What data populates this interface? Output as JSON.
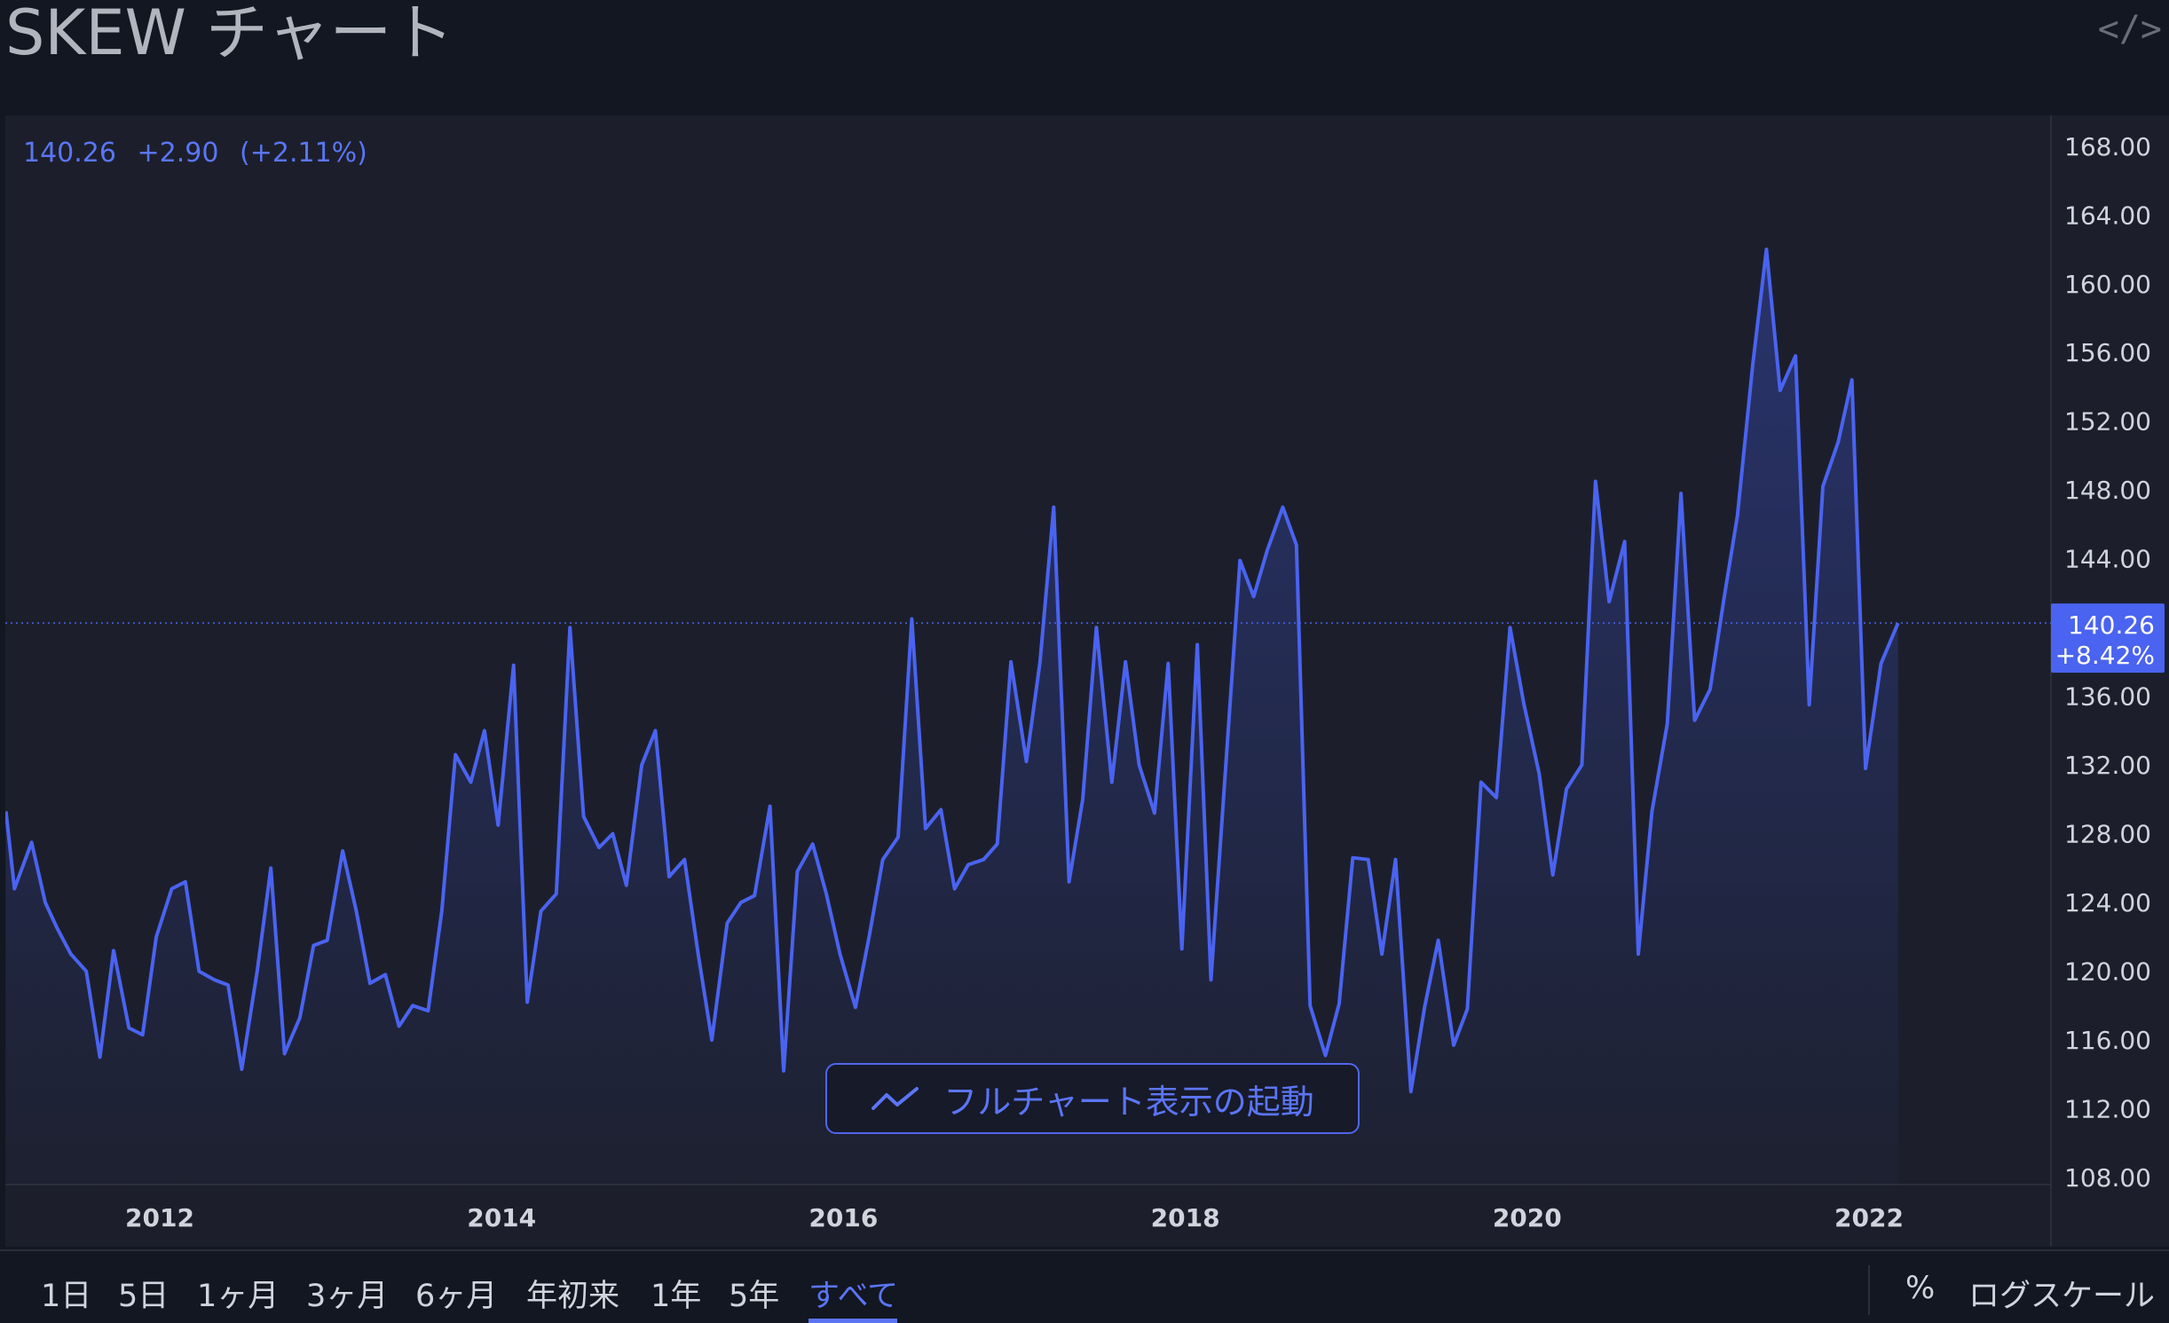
{
  "header": {
    "title": "SKEW チャート",
    "embed_icon": "code-embed-icon"
  },
  "price_info": {
    "last": "140.26",
    "change": "+2.90",
    "change_pct": "(+2.11%)"
  },
  "last_badge": {
    "price": "140.26",
    "pct": "+8.42%"
  },
  "cta": {
    "label": "フルチャート表示の起動",
    "icon": "line-chart-icon"
  },
  "range_buttons": [
    "1日",
    "5日",
    "1ヶ月",
    "3ヶ月",
    "6ヶ月",
    "年初来",
    "1年",
    "5年",
    "すべて"
  ],
  "active_range": "すべて",
  "toolbar": {
    "percent_label": "%",
    "log_label": "ログスケール"
  },
  "colors": {
    "line": "#4a63f0",
    "accent": "#5b75f5",
    "panel_bg": "#1c1f2b",
    "page_bg": "#131722"
  },
  "chart_data": {
    "type": "area",
    "title": "SKEW チャート",
    "xlabel": "",
    "ylabel": "",
    "ylim": [
      108,
      170
    ],
    "yticks": [
      "108.00",
      "112.00",
      "116.00",
      "120.00",
      "124.00",
      "128.00",
      "132.00",
      "136.00",
      "140.00",
      "144.00",
      "148.00",
      "152.00",
      "156.00",
      "160.00",
      "164.00",
      "168.00"
    ],
    "xticks": [
      {
        "year": 2012,
        "label": "2012"
      },
      {
        "year": 2014,
        "label": "2014"
      },
      {
        "year": 2016,
        "label": "2016"
      },
      {
        "year": 2018,
        "label": "2018"
      },
      {
        "year": 2020,
        "label": "2020"
      },
      {
        "year": 2022,
        "label": "2022"
      }
    ],
    "x_range": [
      2011.1,
      2023.08
    ],
    "last_value": 140.26,
    "series": [
      {
        "values": [
          [
            2011.1,
            129.3
          ],
          [
            2011.15,
            124.8
          ],
          [
            2011.25,
            127.5
          ],
          [
            2011.33,
            124.0
          ],
          [
            2011.4,
            122.5
          ],
          [
            2011.48,
            121.0
          ],
          [
            2011.57,
            120.0
          ],
          [
            2011.65,
            115.0
          ],
          [
            2011.73,
            121.2
          ],
          [
            2011.82,
            116.7
          ],
          [
            2011.9,
            116.3
          ],
          [
            2011.98,
            122.0
          ],
          [
            2012.07,
            124.8
          ],
          [
            2012.15,
            125.2
          ],
          [
            2012.23,
            120.0
          ],
          [
            2012.32,
            119.5
          ],
          [
            2012.4,
            119.2
          ],
          [
            2012.48,
            114.3
          ],
          [
            2012.57,
            120.0
          ],
          [
            2012.65,
            126.0
          ],
          [
            2012.73,
            115.2
          ],
          [
            2012.82,
            117.3
          ],
          [
            2012.9,
            121.5
          ],
          [
            2012.98,
            121.8
          ],
          [
            2013.07,
            127.0
          ],
          [
            2013.15,
            123.5
          ],
          [
            2013.23,
            119.3
          ],
          [
            2013.32,
            119.8
          ],
          [
            2013.4,
            116.8
          ],
          [
            2013.48,
            118.0
          ],
          [
            2013.57,
            117.7
          ],
          [
            2013.65,
            123.5
          ],
          [
            2013.73,
            132.6
          ],
          [
            2013.82,
            131.0
          ],
          [
            2013.9,
            134.0
          ],
          [
            2013.98,
            128.5
          ],
          [
            2014.07,
            137.8
          ],
          [
            2014.15,
            118.2
          ],
          [
            2014.23,
            123.5
          ],
          [
            2014.32,
            124.5
          ],
          [
            2014.4,
            140.0
          ],
          [
            2014.48,
            129.0
          ],
          [
            2014.57,
            127.2
          ],
          [
            2014.65,
            128.0
          ],
          [
            2014.73,
            125.0
          ],
          [
            2014.82,
            132.0
          ],
          [
            2014.9,
            134.0
          ],
          [
            2014.98,
            125.5
          ],
          [
            2015.07,
            126.5
          ],
          [
            2015.15,
            121.0
          ],
          [
            2015.23,
            116.0
          ],
          [
            2015.32,
            122.8
          ],
          [
            2015.4,
            124.0
          ],
          [
            2015.48,
            124.4
          ],
          [
            2015.57,
            129.6
          ],
          [
            2015.65,
            114.2
          ],
          [
            2015.73,
            125.8
          ],
          [
            2015.82,
            127.4
          ],
          [
            2015.9,
            124.5
          ],
          [
            2015.98,
            121.0
          ],
          [
            2016.07,
            117.9
          ],
          [
            2016.15,
            122.0
          ],
          [
            2016.23,
            126.5
          ],
          [
            2016.32,
            127.8
          ],
          [
            2016.4,
            140.5
          ],
          [
            2016.48,
            128.3
          ],
          [
            2016.57,
            129.4
          ],
          [
            2016.65,
            124.8
          ],
          [
            2016.73,
            126.2
          ],
          [
            2016.82,
            126.5
          ],
          [
            2016.9,
            127.4
          ],
          [
            2016.98,
            138.0
          ],
          [
            2017.07,
            132.2
          ],
          [
            2017.15,
            138.0
          ],
          [
            2017.23,
            147.0
          ],
          [
            2017.32,
            125.2
          ],
          [
            2017.4,
            130.0
          ],
          [
            2017.48,
            140.0
          ],
          [
            2017.57,
            131.0
          ],
          [
            2017.65,
            138.0
          ],
          [
            2017.73,
            132.0
          ],
          [
            2017.82,
            129.2
          ],
          [
            2017.9,
            137.9
          ],
          [
            2017.98,
            121.3
          ],
          [
            2018.07,
            139.0
          ],
          [
            2018.15,
            119.5
          ],
          [
            2018.23,
            131.0
          ],
          [
            2018.32,
            143.9
          ],
          [
            2018.4,
            141.8
          ],
          [
            2018.48,
            144.5
          ],
          [
            2018.57,
            147.0
          ],
          [
            2018.65,
            144.8
          ],
          [
            2018.73,
            118.0
          ],
          [
            2018.82,
            115.1
          ],
          [
            2018.9,
            118.1
          ],
          [
            2018.98,
            126.6
          ],
          [
            2019.07,
            126.5
          ],
          [
            2019.15,
            121.0
          ],
          [
            2019.23,
            126.5
          ],
          [
            2019.32,
            113.0
          ],
          [
            2019.4,
            117.9
          ],
          [
            2019.48,
            121.8
          ],
          [
            2019.57,
            115.7
          ],
          [
            2019.65,
            117.8
          ],
          [
            2019.73,
            131.0
          ],
          [
            2019.82,
            130.1
          ],
          [
            2019.9,
            140.0
          ],
          [
            2019.98,
            135.6
          ],
          [
            2020.07,
            131.5
          ],
          [
            2020.15,
            125.6
          ],
          [
            2020.23,
            130.6
          ],
          [
            2020.32,
            132.0
          ],
          [
            2020.4,
            148.5
          ],
          [
            2020.48,
            141.5
          ],
          [
            2020.57,
            145.0
          ],
          [
            2020.65,
            121.0
          ],
          [
            2020.73,
            129.3
          ],
          [
            2020.82,
            134.4
          ],
          [
            2020.9,
            147.8
          ],
          [
            2020.98,
            134.6
          ],
          [
            2021.07,
            136.4
          ],
          [
            2021.15,
            141.6
          ],
          [
            2021.23,
            146.5
          ],
          [
            2021.32,
            155.3
          ],
          [
            2021.4,
            162.0
          ],
          [
            2021.48,
            153.8
          ],
          [
            2021.57,
            155.8
          ],
          [
            2021.65,
            135.5
          ],
          [
            2021.73,
            148.2
          ],
          [
            2021.82,
            150.8
          ],
          [
            2021.9,
            154.4
          ],
          [
            2021.98,
            131.8
          ],
          [
            2022.07,
            137.9
          ],
          [
            2022.17,
            140.26
          ]
        ]
      }
    ],
    "grid": false,
    "legend": "none"
  }
}
